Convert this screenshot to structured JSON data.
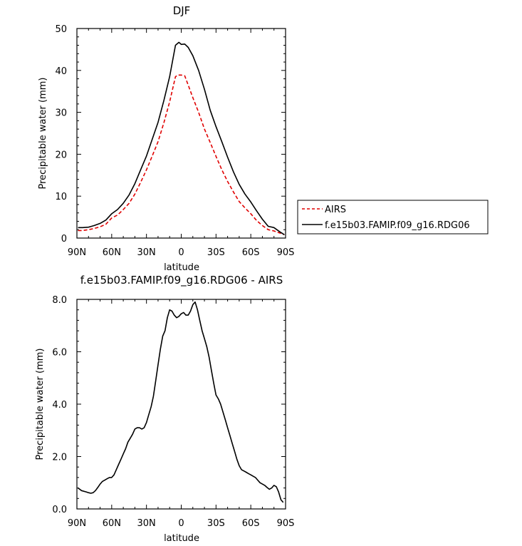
{
  "chart_data": [
    {
      "type": "line",
      "title": "DJF",
      "xlabel": "latitude",
      "ylabel": "Precipitable water (mm)",
      "xlim": [
        90,
        -90
      ],
      "ylim": [
        0,
        50
      ],
      "x_tick_labels": [
        "90N",
        "60N",
        "30N",
        "0",
        "30S",
        "60S",
        "90S"
      ],
      "y_tick_labels": [
        "0",
        "10",
        "20",
        "30",
        "40",
        "50"
      ],
      "legend_position": "right",
      "series": [
        {
          "name": "AIRS",
          "color": "#e00000",
          "style": "dashed",
          "x": [
            89,
            85,
            80,
            75,
            70,
            65,
            60,
            55,
            50,
            45,
            40,
            35,
            30,
            25,
            20,
            15,
            10,
            5,
            3,
            0,
            -3,
            -6,
            -10,
            -15,
            -20,
            -25,
            -30,
            -35,
            -40,
            -45,
            -50,
            -55,
            -60,
            -65,
            -70,
            -75,
            -80,
            -85,
            -89
          ],
          "y": [
            1.8,
            1.8,
            2.0,
            2.3,
            2.7,
            3.3,
            4.8,
            5.5,
            6.8,
            8.3,
            10.5,
            13.3,
            16.3,
            19.6,
            23.0,
            27.5,
            32.5,
            38.5,
            38.9,
            38.9,
            38.7,
            36.5,
            33.5,
            30.0,
            26.0,
            22.8,
            19.5,
            16.3,
            13.5,
            11.0,
            8.7,
            7.2,
            5.8,
            4.2,
            3.0,
            2.0,
            1.7,
            1.2,
            0.8
          ]
        },
        {
          "name": "f.e15b03.FAMIP.f09_g16.RDG06",
          "color": "#000000",
          "style": "solid",
          "x": [
            89,
            85,
            80,
            75,
            70,
            65,
            60,
            55,
            50,
            45,
            40,
            35,
            30,
            25,
            20,
            15,
            10,
            5,
            2,
            0,
            -3,
            -6,
            -10,
            -15,
            -20,
            -25,
            -30,
            -35,
            -40,
            -45,
            -50,
            -55,
            -60,
            -65,
            -70,
            -75,
            -80,
            -85,
            -89
          ],
          "y": [
            2.5,
            2.5,
            2.6,
            3.0,
            3.5,
            4.3,
            5.8,
            6.8,
            8.3,
            10.3,
            13.0,
            16.3,
            19.6,
            23.6,
            27.6,
            32.8,
            38.5,
            46.0,
            46.7,
            46.2,
            46.3,
            45.5,
            43.5,
            40.0,
            35.5,
            30.5,
            26.6,
            23.0,
            19.3,
            15.8,
            12.8,
            10.5,
            8.6,
            6.5,
            4.5,
            2.8,
            2.5,
            1.5,
            0.8
          ]
        }
      ]
    },
    {
      "type": "line",
      "title": "f.e15b03.FAMIP.f09_g16.RDG06 - AIRS",
      "xlabel": "latitude",
      "ylabel": "Precipitable water (mm)",
      "xlim": [
        90,
        -90
      ],
      "ylim": [
        0,
        8
      ],
      "x_tick_labels": [
        "90N",
        "60N",
        "30N",
        "0",
        "30S",
        "60S",
        "90S"
      ],
      "y_tick_labels": [
        "0.0",
        "2.0",
        "4.0",
        "6.0",
        "8.0"
      ],
      "series": [
        {
          "color": "#000000",
          "style": "solid",
          "x": [
            89,
            86,
            82,
            80,
            78,
            76,
            74,
            72,
            70,
            68,
            66,
            64,
            62,
            60,
            58,
            56,
            54,
            52,
            50,
            48,
            46,
            44,
            42,
            40,
            38,
            36,
            34,
            32,
            30,
            28,
            26,
            24,
            22,
            20,
            18,
            16,
            14,
            12,
            10,
            8,
            6,
            4,
            2,
            0,
            -2,
            -4,
            -6,
            -8,
            -10,
            -12,
            -14,
            -16,
            -18,
            -20,
            -22,
            -24,
            -26,
            -28,
            -30,
            -32,
            -34,
            -36,
            -38,
            -40,
            -42,
            -44,
            -46,
            -48,
            -50,
            -52,
            -54,
            -56,
            -58,
            -60,
            -62,
            -64,
            -66,
            -68,
            -70,
            -72,
            -74,
            -76,
            -78,
            -80,
            -82,
            -84,
            -86,
            -88
          ],
          "y": [
            0.8,
            0.7,
            0.65,
            0.62,
            0.6,
            0.62,
            0.7,
            0.82,
            0.95,
            1.05,
            1.1,
            1.15,
            1.2,
            1.2,
            1.3,
            1.5,
            1.7,
            1.9,
            2.1,
            2.3,
            2.55,
            2.7,
            2.85,
            3.05,
            3.1,
            3.1,
            3.05,
            3.1,
            3.3,
            3.6,
            3.9,
            4.3,
            4.9,
            5.5,
            6.1,
            6.6,
            6.8,
            7.3,
            7.6,
            7.55,
            7.4,
            7.3,
            7.35,
            7.45,
            7.5,
            7.4,
            7.4,
            7.55,
            7.8,
            7.9,
            7.6,
            7.2,
            6.8,
            6.5,
            6.2,
            5.8,
            5.3,
            4.8,
            4.35,
            4.2,
            4.0,
            3.7,
            3.4,
            3.1,
            2.8,
            2.5,
            2.2,
            1.9,
            1.65,
            1.5,
            1.45,
            1.4,
            1.35,
            1.3,
            1.25,
            1.2,
            1.1,
            1.0,
            0.95,
            0.9,
            0.82,
            0.75,
            0.8,
            0.9,
            0.85,
            0.65,
            0.35,
            0.25
          ]
        }
      ]
    }
  ]
}
